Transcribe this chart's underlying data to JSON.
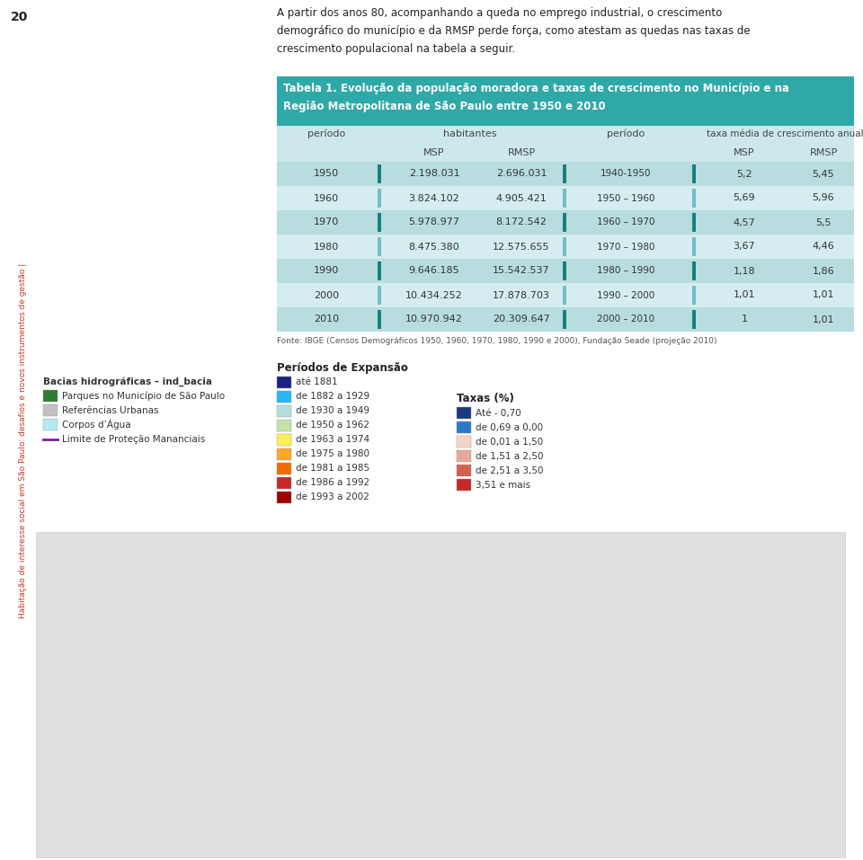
{
  "page_num": "20",
  "side_text": "Habitação de interesse social em São Paulo: desafios e novos instrumentos de gestão |",
  "main_text_lines": [
    "A partir dos anos 80, acompanhando a queda no emprego industrial, o crescimento",
    "demográfico do município e da RMSP perde força, como atestam as quedas nas taxas de",
    "crescimento populacional na tabela a seguir."
  ],
  "table_title_line1": "Tabela 1. Evolução da população moradora e taxas de crescimento no Município e na",
  "table_title_line2": "Região Metropolitana de São Paulo entre 1950 e 2010",
  "table_rows": [
    [
      "1950",
      "2.198.031",
      "2.696.031",
      "1940-1950",
      "5,2",
      "5,45"
    ],
    [
      "1960",
      "3.824.102",
      "4.905.421",
      "1950 – 1960",
      "5,69",
      "5,96"
    ],
    [
      "1970",
      "5.978.977",
      "8.172.542",
      "1960 – 1970",
      "4,57",
      "5,5"
    ],
    [
      "1980",
      "8.475.380",
      "12.575.655",
      "1970 – 1980",
      "3,67",
      "4,46"
    ],
    [
      "1990",
      "9.646.185",
      "15.542.537",
      "1980 – 1990",
      "1,18",
      "1,86"
    ],
    [
      "2000",
      "10.434.252",
      "17.878.703",
      "1990 – 2000",
      "1,01",
      "1,01"
    ],
    [
      "2010",
      "10.970.942",
      "20.309.647",
      "2000 – 2010",
      "1",
      "1,01"
    ]
  ],
  "fonte_text": "Fonte: IBGE (Censos Demográficos 1950, 1960, 1970, 1980, 1990 e 2000), Fundação Seade (projeção 2010)",
  "header_bg_color": "#2fa8a8",
  "row_alt_colors": [
    "#b8dde0",
    "#d5edf0"
  ],
  "dark_bar_color": "#1a8080",
  "light_bar_color": "#6fbfc5",
  "periodos_title": "Períodos de Expansão",
  "periodos_items": [
    {
      "color": "#1a237e",
      "label": "até 1881"
    },
    {
      "color": "#29b6f6",
      "label": "de 1882 a 1929"
    },
    {
      "color": "#b2dfdb",
      "label": "de 1930 a 1949"
    },
    {
      "color": "#c5e1a5",
      "label": "de 1950 a 1962"
    },
    {
      "color": "#ffee58",
      "label": "de 1963 a 1974"
    },
    {
      "color": "#ffa726",
      "label": "de 1975 a 1980"
    },
    {
      "color": "#ef6c00",
      "label": "de 1981 a 1985"
    },
    {
      "color": "#c62828",
      "label": "de 1986 a 1992"
    },
    {
      "color": "#a00000",
      "label": "de 1993 a 2002"
    }
  ],
  "taxas_title": "Taxas (%)",
  "taxas_items": [
    {
      "color": "#1a3a80",
      "label": "Até - 0,70"
    },
    {
      "color": "#2979c8",
      "label": "de 0,69 a 0,00"
    },
    {
      "color": "#f5d5c8",
      "label": "de 0,01 a 1,50"
    },
    {
      "color": "#e8a898",
      "label": "de 1,51 a 2,50"
    },
    {
      "color": "#d46050",
      "label": "de 2,51 a 3,50"
    },
    {
      "color": "#c62828",
      "label": "3,51 e mais"
    }
  ],
  "bacias_title": "Bacias hidrográficas – ind_bacia",
  "bacias_items": [
    {
      "color": "#2e7d32",
      "label": "Parques no Município de São Paulo",
      "line": false
    },
    {
      "color": "#c0c0c0",
      "label": "Referências Urbanas",
      "line": false
    },
    {
      "color": "#b2ebf2",
      "label": "Corpos d’Água",
      "line": false
    },
    {
      "color": "#7b1fa2",
      "label": "Limite de Proteção Mananciais",
      "line": true
    }
  ],
  "bg_color": "#ffffff",
  "map_bg_color": "#e0e0e0"
}
